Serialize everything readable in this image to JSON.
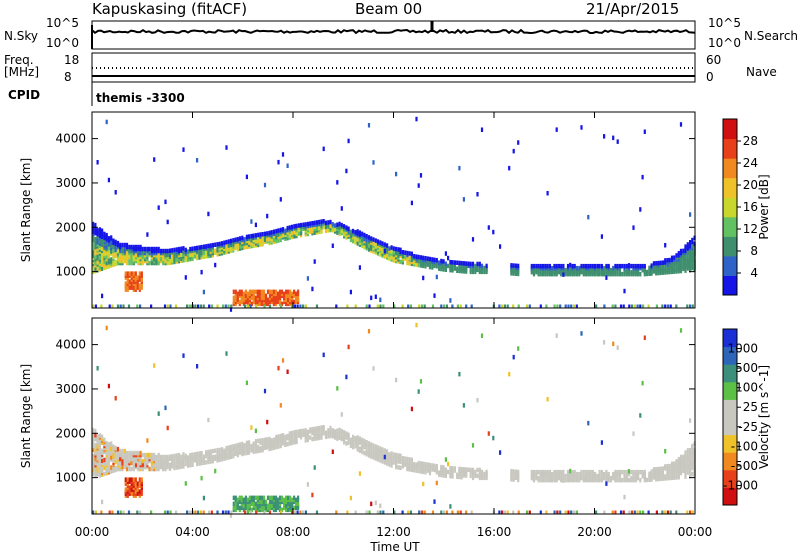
{
  "header": {
    "station": "Kapuskasing (fitACF)",
    "beam": "Beam 00",
    "date": "21/Apr/2015"
  },
  "status": {
    "nsky_label": "N.Sky",
    "nsky_ticks": [
      "10^5",
      "10^0"
    ],
    "nsearch_label": "N.Search",
    "nsearch_ticks": [
      "10^5",
      "10^0"
    ],
    "freq_label_1": "Freq.",
    "freq_label_2": "[MHz]",
    "freq_ticks": [
      "18",
      "8"
    ],
    "nave_label": "Nave",
    "nave_ticks": [
      "60",
      "0"
    ],
    "cpid_label": "CPID",
    "cpid_value": "themis -3300"
  },
  "chart_data": [
    {
      "type": "heatmap",
      "name": "power-panel",
      "xlabel": "",
      "ylabel": "Slant Range [km]",
      "y_ticks": [
        "1000",
        "2000",
        "3000",
        "4000"
      ],
      "ylim": [
        180,
        4600
      ],
      "xlim": [
        0,
        24
      ],
      "colorbar_label": "Power [dB]",
      "colorbar_ticks": [
        "4",
        "8",
        "12",
        "16",
        "20",
        "24",
        "28"
      ],
      "colorbar_colors": [
        "#1515e8",
        "#2f63c7",
        "#3f8f6e",
        "#62c262",
        "#c9d72c",
        "#f0c22a",
        "#f08a20",
        "#e8401a",
        "#d01010"
      ],
      "echo_band": {
        "hours": [
          0,
          1,
          2,
          3,
          4,
          5,
          6,
          7,
          8,
          9,
          9.5,
          10,
          11,
          12,
          13,
          14,
          15,
          16,
          17,
          18,
          19,
          20,
          21,
          22,
          23,
          24
        ],
        "upper_km": [
          2100,
          1650,
          1550,
          1500,
          1550,
          1650,
          1780,
          1900,
          2050,
          2150,
          2150,
          2050,
          1800,
          1550,
          1350,
          1250,
          1200,
          1150,
          1150,
          1150,
          1150,
          1150,
          1150,
          1150,
          1300,
          1800
        ],
        "lower_km": [
          1000,
          1200,
          1200,
          1200,
          1300,
          1400,
          1550,
          1650,
          1800,
          1900,
          1950,
          1800,
          1500,
          1250,
          1150,
          1050,
          1000,
          1000,
          950,
          950,
          950,
          950,
          950,
          950,
          1000,
          1050
        ]
      }
    },
    {
      "type": "heatmap",
      "name": "velocity-panel",
      "xlabel": "Time UT",
      "ylabel": "Slant Range [km]",
      "x_ticks": [
        "00:00",
        "04:00",
        "08:00",
        "12:00",
        "16:00",
        "20:00",
        "00:00"
      ],
      "y_ticks": [
        "1000",
        "2000",
        "3000",
        "4000"
      ],
      "ylim": [
        180,
        4600
      ],
      "xlim": [
        0,
        24
      ],
      "colorbar_label": "Velocity [m s^-1]",
      "colorbar_ticks": [
        "1000",
        "500",
        "100",
        "25",
        "-25",
        "-100",
        "-500",
        "-1000"
      ],
      "colorbar_colors": [
        "#1a2fd6",
        "#2d66b8",
        "#3c8f7a",
        "#5cc046",
        "#c8c8c0",
        "#c8c8c0",
        "#f0c22a",
        "#f08a20",
        "#e8401a",
        "#d01010"
      ]
    }
  ],
  "colors": {
    "ground_scatter": "#c8c8c0",
    "axis": "#000000"
  }
}
